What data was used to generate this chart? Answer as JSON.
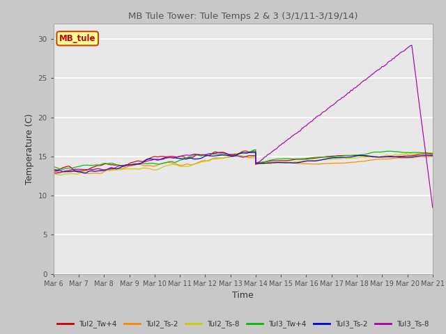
{
  "title": "MB Tule Tower: Tule Temps 2 & 3 (3/1/11-3/19/14)",
  "xlabel": "Time",
  "ylabel": "Temperature (C)",
  "ylim": [
    0,
    32
  ],
  "yticks": [
    0,
    5,
    10,
    15,
    20,
    25,
    30
  ],
  "plot_bg_color": "#e8e8e8",
  "fig_bg_color": "#c8c8c8",
  "legend_label": "MB_tule",
  "legend_bg": "#ffff99",
  "legend_border": "#8b0000",
  "xtick_labels": [
    "Mar 6",
    "Mar 7",
    "Mar 8",
    "Mar 9",
    "Mar 10",
    "Mar 11",
    "Mar 12",
    "Mar 13",
    "Mar 14",
    "Mar 15",
    "Mar 16",
    "Mar 17",
    "Mar 18",
    "Mar 19",
    "Mar 20",
    "Mar 21"
  ],
  "series": [
    {
      "name": "Tul2_Tw+4",
      "color": "#cc0000"
    },
    {
      "name": "Tul2_Ts-2",
      "color": "#ff8800"
    },
    {
      "name": "Tul2_Ts-8",
      "color": "#cccc00"
    },
    {
      "name": "Tul3_Tw+4",
      "color": "#00bb00"
    },
    {
      "name": "Tul3_Ts-2",
      "color": "#0000cc"
    },
    {
      "name": "Tul3_Ts-8",
      "color": "#aa00aa"
    }
  ]
}
